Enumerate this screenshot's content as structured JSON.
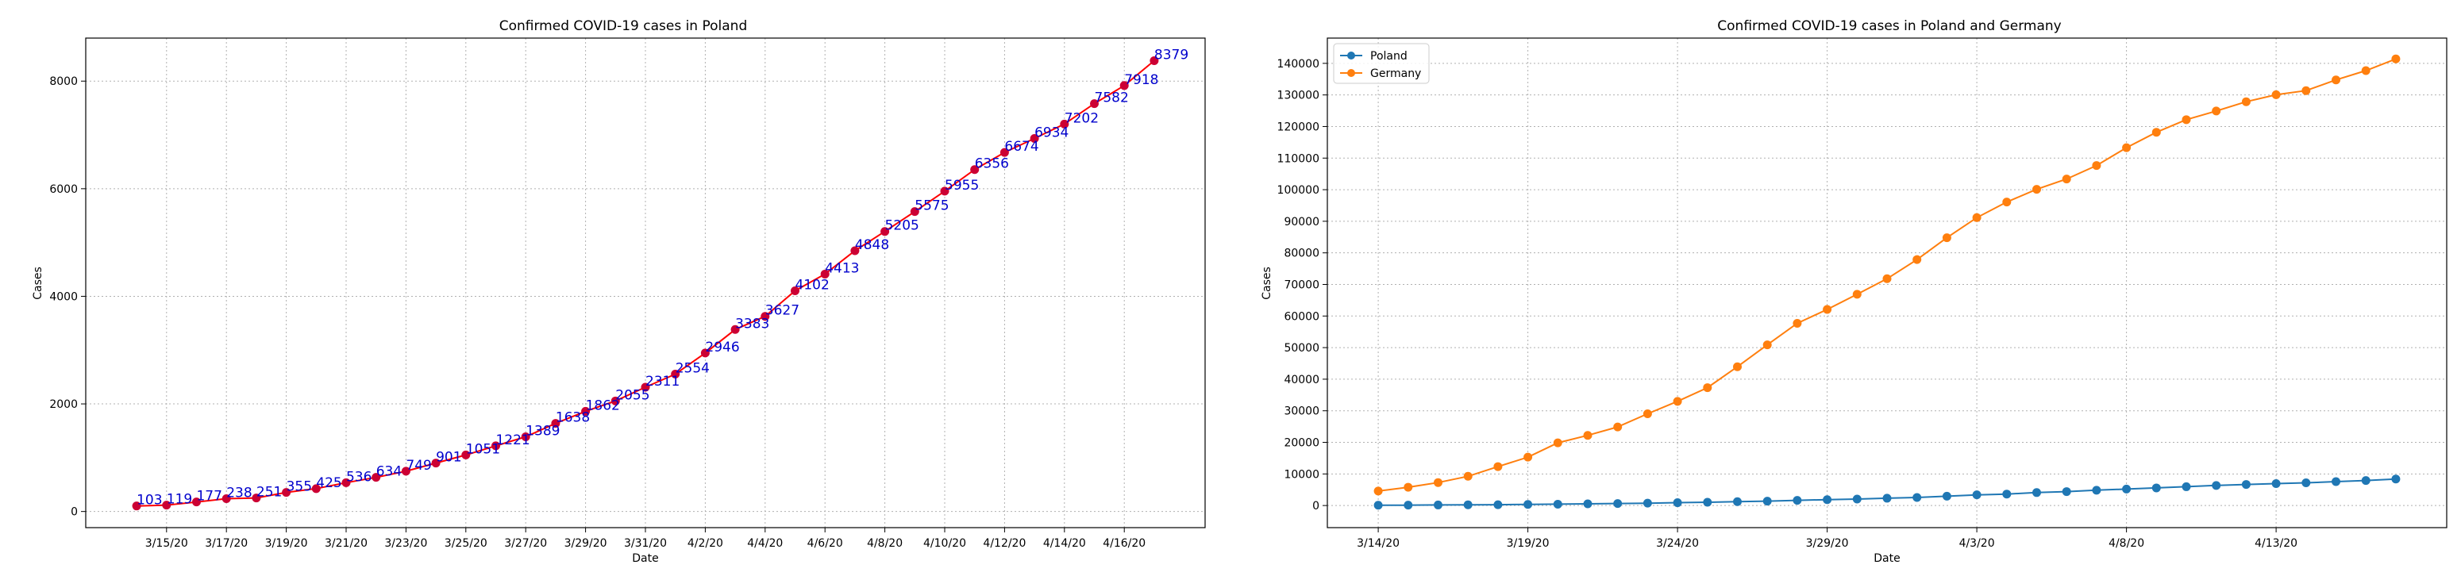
{
  "chart_data": [
    {
      "type": "line",
      "title": "Confirmed COVID-19 cases in Poland",
      "xlabel": "Date",
      "ylabel": "Cases",
      "x": [
        "3/14/20",
        "3/15/20",
        "3/16/20",
        "3/17/20",
        "3/18/20",
        "3/19/20",
        "3/20/20",
        "3/21/20",
        "3/22/20",
        "3/23/20",
        "3/24/20",
        "3/25/20",
        "3/26/20",
        "3/27/20",
        "3/28/20",
        "3/29/20",
        "3/30/20",
        "3/31/20",
        "4/1/20",
        "4/2/20",
        "4/3/20",
        "4/4/20",
        "4/5/20",
        "4/6/20",
        "4/7/20",
        "4/8/20",
        "4/9/20",
        "4/10/20",
        "4/11/20",
        "4/12/20",
        "4/13/20",
        "4/14/20",
        "4/15/20",
        "4/16/20",
        "4/17/20"
      ],
      "x_ticks": [
        "3/15/20",
        "3/17/20",
        "3/19/20",
        "3/21/20",
        "3/23/20",
        "3/25/20",
        "3/27/20",
        "3/29/20",
        "3/31/20",
        "4/2/20",
        "4/4/20",
        "4/6/20",
        "4/8/20",
        "4/10/20",
        "4/12/20",
        "4/14/20",
        "4/16/20"
      ],
      "y_ticks": [
        0,
        2000,
        4000,
        6000,
        8000
      ],
      "ylim": [
        -300,
        8800
      ],
      "grid": true,
      "line_color": "#ff0000",
      "marker_color": "#cc0033",
      "label_color": "#0000cc",
      "series": [
        {
          "values": [
            103,
            119,
            177,
            238,
            251,
            355,
            425,
            536,
            634,
            749,
            901,
            1051,
            1221,
            1389,
            1638,
            1862,
            2055,
            2311,
            2554,
            2946,
            3383,
            3627,
            4102,
            4413,
            4848,
            5205,
            5575,
            5955,
            6356,
            6674,
            6934,
            7202,
            7582,
            7918,
            8379
          ]
        }
      ]
    },
    {
      "type": "line",
      "title": "Confirmed COVID-19 cases in Poland and Germany",
      "xlabel": "Date",
      "ylabel": "Cases",
      "x": [
        "3/14/20",
        "3/15/20",
        "3/16/20",
        "3/17/20",
        "3/18/20",
        "3/19/20",
        "3/20/20",
        "3/21/20",
        "3/22/20",
        "3/23/20",
        "3/24/20",
        "3/25/20",
        "3/26/20",
        "3/27/20",
        "3/28/20",
        "3/29/20",
        "3/30/20",
        "3/31/20",
        "4/1/20",
        "4/2/20",
        "4/3/20",
        "4/4/20",
        "4/5/20",
        "4/6/20",
        "4/7/20",
        "4/8/20",
        "4/9/20",
        "4/10/20",
        "4/11/20",
        "4/12/20",
        "4/13/20",
        "4/14/20",
        "4/15/20",
        "4/16/20",
        "4/17/20"
      ],
      "x_ticks": [
        "3/14/20",
        "3/19/20",
        "3/24/20",
        "3/29/20",
        "4/3/20",
        "4/8/20",
        "4/13/20"
      ],
      "y_ticks": [
        0,
        10000,
        20000,
        30000,
        40000,
        50000,
        60000,
        70000,
        80000,
        90000,
        100000,
        110000,
        120000,
        130000,
        140000
      ],
      "ylim": [
        -7000,
        148000
      ],
      "grid": true,
      "legend": "top-left",
      "series": [
        {
          "name": "Poland",
          "color": "#1f77b4",
          "values": [
            103,
            119,
            177,
            238,
            251,
            355,
            425,
            536,
            634,
            749,
            901,
            1051,
            1221,
            1389,
            1638,
            1862,
            2055,
            2311,
            2554,
            2946,
            3383,
            3627,
            4102,
            4413,
            4848,
            5205,
            5575,
            5955,
            6356,
            6674,
            6934,
            7202,
            7582,
            7918,
            8379
          ]
        },
        {
          "name": "Germany",
          "color": "#ff7f0e",
          "values": [
            4585,
            5795,
            7272,
            9257,
            12327,
            15320,
            19848,
            22213,
            24873,
            29056,
            32986,
            37323,
            43938,
            50871,
            57695,
            62095,
            66885,
            71808,
            77872,
            84794,
            91159,
            96092,
            100123,
            103374,
            107663,
            113296,
            118181,
            122171,
            124908,
            127854,
            130072,
            131359,
            134753,
            137698,
            141397
          ]
        }
      ]
    }
  ]
}
